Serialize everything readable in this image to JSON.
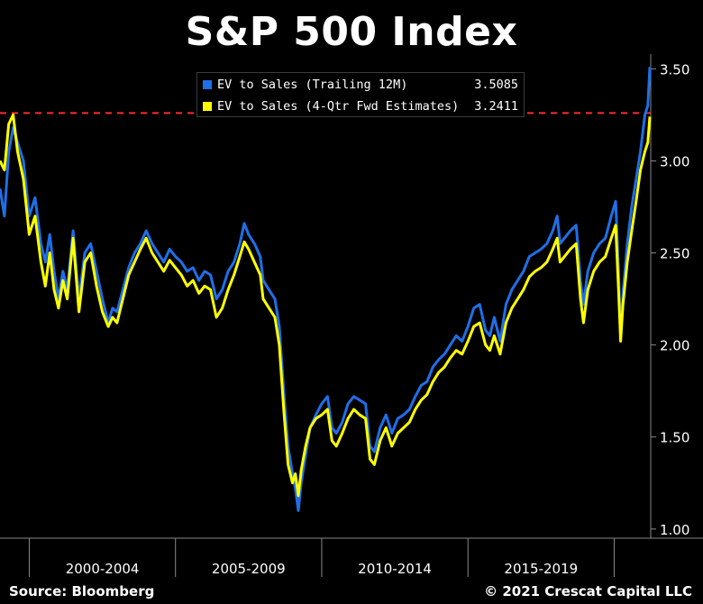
{
  "title": "S&P 500 Index",
  "legend": [
    {
      "label": "EV to Sales (Trailing 12M)",
      "value": "3.5085",
      "color": "#1f6fe8"
    },
    {
      "label": "EV to Sales (4-Qtr Fwd Estimates)",
      "value": "3.2411",
      "color": "#ffff00"
    }
  ],
  "footer": {
    "source": "Source: Bloomberg",
    "copyright": "© 2021 Crescat Capital LLC"
  },
  "colors": {
    "background": "#000000",
    "trailing": "#1f6fe8",
    "forward": "#ffff00",
    "reference_line": "#ff2a2a",
    "axis": "#888888"
  },
  "chart_data": {
    "type": "line",
    "title": "S&P 500 Index",
    "xlabel": "",
    "ylabel": "",
    "x_period_labels": [
      "2000-2004",
      "2005-2009",
      "2010-2014",
      "2015-2019"
    ],
    "xlim": [
      1999.0,
      2021.25
    ],
    "ylim": [
      0.95,
      3.58
    ],
    "y_ticks": [
      1.0,
      1.5,
      2.0,
      2.5,
      3.0,
      3.5
    ],
    "y_tick_labels": [
      "1.00",
      "1.50",
      "2.00",
      "2.50",
      "3.00",
      "3.50"
    ],
    "y_axis_side": "right",
    "reference_line": {
      "y": 3.26,
      "style": "dashed",
      "color": "#ff2a2a"
    },
    "series": [
      {
        "name": "EV to Sales (Trailing 12M)",
        "color": "#1f6fe8",
        "last_value": 3.5085,
        "points": [
          [
            1999.0,
            2.85
          ],
          [
            1999.15,
            2.7
          ],
          [
            1999.3,
            3.05
          ],
          [
            1999.45,
            3.18
          ],
          [
            1999.6,
            3.1
          ],
          [
            1999.8,
            3.0
          ],
          [
            2000.0,
            2.7
          ],
          [
            2000.2,
            2.8
          ],
          [
            2000.4,
            2.55
          ],
          [
            2000.55,
            2.45
          ],
          [
            2000.7,
            2.6
          ],
          [
            2000.85,
            2.4
          ],
          [
            2001.0,
            2.25
          ],
          [
            2001.15,
            2.4
          ],
          [
            2001.3,
            2.3
          ],
          [
            2001.5,
            2.62
          ],
          [
            2001.7,
            2.25
          ],
          [
            2001.9,
            2.5
          ],
          [
            2002.1,
            2.55
          ],
          [
            2002.3,
            2.4
          ],
          [
            2002.5,
            2.25
          ],
          [
            2002.7,
            2.12
          ],
          [
            2002.85,
            2.2
          ],
          [
            2003.0,
            2.18
          ],
          [
            2003.2,
            2.3
          ],
          [
            2003.4,
            2.42
          ],
          [
            2003.6,
            2.5
          ],
          [
            2003.8,
            2.55
          ],
          [
            2004.0,
            2.62
          ],
          [
            2004.2,
            2.55
          ],
          [
            2004.4,
            2.5
          ],
          [
            2004.6,
            2.45
          ],
          [
            2004.8,
            2.52
          ],
          [
            2005.0,
            2.48
          ],
          [
            2005.2,
            2.45
          ],
          [
            2005.4,
            2.4
          ],
          [
            2005.6,
            2.42
          ],
          [
            2005.8,
            2.35
          ],
          [
            2006.0,
            2.4
          ],
          [
            2006.2,
            2.38
          ],
          [
            2006.4,
            2.25
          ],
          [
            2006.6,
            2.3
          ],
          [
            2006.8,
            2.4
          ],
          [
            2007.0,
            2.45
          ],
          [
            2007.2,
            2.55
          ],
          [
            2007.35,
            2.66
          ],
          [
            2007.5,
            2.6
          ],
          [
            2007.7,
            2.55
          ],
          [
            2007.9,
            2.48
          ],
          [
            2008.0,
            2.35
          ],
          [
            2008.2,
            2.3
          ],
          [
            2008.4,
            2.25
          ],
          [
            2008.55,
            2.1
          ],
          [
            2008.7,
            1.75
          ],
          [
            2008.85,
            1.45
          ],
          [
            2009.0,
            1.3
          ],
          [
            2009.1,
            1.22
          ],
          [
            2009.2,
            1.1
          ],
          [
            2009.3,
            1.25
          ],
          [
            2009.45,
            1.4
          ],
          [
            2009.6,
            1.55
          ],
          [
            2009.8,
            1.62
          ],
          [
            2010.0,
            1.68
          ],
          [
            2010.2,
            1.72
          ],
          [
            2010.35,
            1.55
          ],
          [
            2010.5,
            1.52
          ],
          [
            2010.7,
            1.58
          ],
          [
            2010.9,
            1.68
          ],
          [
            2011.1,
            1.72
          ],
          [
            2011.3,
            1.7
          ],
          [
            2011.5,
            1.68
          ],
          [
            2011.65,
            1.45
          ],
          [
            2011.8,
            1.42
          ],
          [
            2012.0,
            1.55
          ],
          [
            2012.2,
            1.62
          ],
          [
            2012.4,
            1.52
          ],
          [
            2012.6,
            1.6
          ],
          [
            2012.8,
            1.62
          ],
          [
            2013.0,
            1.65
          ],
          [
            2013.2,
            1.72
          ],
          [
            2013.4,
            1.78
          ],
          [
            2013.6,
            1.8
          ],
          [
            2013.8,
            1.88
          ],
          [
            2014.0,
            1.92
          ],
          [
            2014.2,
            1.95
          ],
          [
            2014.4,
            2.0
          ],
          [
            2014.6,
            2.05
          ],
          [
            2014.8,
            2.02
          ],
          [
            2015.0,
            2.1
          ],
          [
            2015.2,
            2.2
          ],
          [
            2015.4,
            2.22
          ],
          [
            2015.6,
            2.08
          ],
          [
            2015.75,
            2.05
          ],
          [
            2015.9,
            2.15
          ],
          [
            2016.1,
            2.02
          ],
          [
            2016.3,
            2.22
          ],
          [
            2016.5,
            2.3
          ],
          [
            2016.7,
            2.35
          ],
          [
            2016.9,
            2.4
          ],
          [
            2017.1,
            2.48
          ],
          [
            2017.3,
            2.5
          ],
          [
            2017.5,
            2.52
          ],
          [
            2017.7,
            2.55
          ],
          [
            2017.9,
            2.62
          ],
          [
            2018.05,
            2.7
          ],
          [
            2018.15,
            2.55
          ],
          [
            2018.3,
            2.58
          ],
          [
            2018.5,
            2.62
          ],
          [
            2018.7,
            2.65
          ],
          [
            2018.85,
            2.35
          ],
          [
            2018.95,
            2.22
          ],
          [
            2019.1,
            2.4
          ],
          [
            2019.3,
            2.5
          ],
          [
            2019.5,
            2.55
          ],
          [
            2019.7,
            2.58
          ],
          [
            2019.9,
            2.7
          ],
          [
            2020.05,
            2.78
          ],
          [
            2020.15,
            2.4
          ],
          [
            2020.22,
            2.05
          ],
          [
            2020.3,
            2.28
          ],
          [
            2020.45,
            2.55
          ],
          [
            2020.6,
            2.75
          ],
          [
            2020.75,
            2.9
          ],
          [
            2020.9,
            3.05
          ],
          [
            2021.05,
            3.25
          ],
          [
            2021.15,
            3.3
          ],
          [
            2021.22,
            3.51
          ]
        ]
      },
      {
        "name": "EV to Sales (4-Qtr Fwd Estimates)",
        "color": "#ffff00",
        "last_value": 3.2411,
        "points": [
          [
            1999.0,
            3.0
          ],
          [
            1999.15,
            2.95
          ],
          [
            1999.3,
            3.2
          ],
          [
            1999.45,
            3.25
          ],
          [
            1999.6,
            3.05
          ],
          [
            1999.8,
            2.9
          ],
          [
            2000.0,
            2.6
          ],
          [
            2000.2,
            2.7
          ],
          [
            2000.4,
            2.45
          ],
          [
            2000.55,
            2.32
          ],
          [
            2000.7,
            2.5
          ],
          [
            2000.85,
            2.3
          ],
          [
            2001.0,
            2.2
          ],
          [
            2001.15,
            2.35
          ],
          [
            2001.3,
            2.25
          ],
          [
            2001.5,
            2.58
          ],
          [
            2001.7,
            2.18
          ],
          [
            2001.9,
            2.45
          ],
          [
            2002.1,
            2.5
          ],
          [
            2002.3,
            2.32
          ],
          [
            2002.5,
            2.18
          ],
          [
            2002.7,
            2.1
          ],
          [
            2002.85,
            2.15
          ],
          [
            2003.0,
            2.12
          ],
          [
            2003.2,
            2.25
          ],
          [
            2003.4,
            2.38
          ],
          [
            2003.6,
            2.45
          ],
          [
            2003.8,
            2.52
          ],
          [
            2004.0,
            2.58
          ],
          [
            2004.2,
            2.5
          ],
          [
            2004.4,
            2.45
          ],
          [
            2004.6,
            2.4
          ],
          [
            2004.8,
            2.46
          ],
          [
            2005.0,
            2.42
          ],
          [
            2005.2,
            2.38
          ],
          [
            2005.4,
            2.32
          ],
          [
            2005.6,
            2.35
          ],
          [
            2005.8,
            2.28
          ],
          [
            2006.0,
            2.32
          ],
          [
            2006.2,
            2.3
          ],
          [
            2006.4,
            2.15
          ],
          [
            2006.6,
            2.2
          ],
          [
            2006.8,
            2.3
          ],
          [
            2007.0,
            2.38
          ],
          [
            2007.2,
            2.48
          ],
          [
            2007.35,
            2.56
          ],
          [
            2007.5,
            2.52
          ],
          [
            2007.7,
            2.45
          ],
          [
            2007.9,
            2.38
          ],
          [
            2008.0,
            2.25
          ],
          [
            2008.2,
            2.2
          ],
          [
            2008.4,
            2.15
          ],
          [
            2008.55,
            2.0
          ],
          [
            2008.7,
            1.65
          ],
          [
            2008.85,
            1.35
          ],
          [
            2009.0,
            1.25
          ],
          [
            2009.1,
            1.3
          ],
          [
            2009.2,
            1.18
          ],
          [
            2009.3,
            1.32
          ],
          [
            2009.45,
            1.45
          ],
          [
            2009.6,
            1.55
          ],
          [
            2009.8,
            1.6
          ],
          [
            2010.0,
            1.62
          ],
          [
            2010.2,
            1.65
          ],
          [
            2010.35,
            1.48
          ],
          [
            2010.5,
            1.45
          ],
          [
            2010.7,
            1.52
          ],
          [
            2010.9,
            1.6
          ],
          [
            2011.1,
            1.65
          ],
          [
            2011.3,
            1.62
          ],
          [
            2011.5,
            1.6
          ],
          [
            2011.65,
            1.38
          ],
          [
            2011.8,
            1.35
          ],
          [
            2012.0,
            1.48
          ],
          [
            2012.2,
            1.55
          ],
          [
            2012.4,
            1.45
          ],
          [
            2012.6,
            1.52
          ],
          [
            2012.8,
            1.55
          ],
          [
            2013.0,
            1.58
          ],
          [
            2013.2,
            1.65
          ],
          [
            2013.4,
            1.7
          ],
          [
            2013.6,
            1.73
          ],
          [
            2013.8,
            1.8
          ],
          [
            2014.0,
            1.85
          ],
          [
            2014.2,
            1.88
          ],
          [
            2014.4,
            1.93
          ],
          [
            2014.6,
            1.97
          ],
          [
            2014.8,
            1.95
          ],
          [
            2015.0,
            2.02
          ],
          [
            2015.2,
            2.1
          ],
          [
            2015.4,
            2.12
          ],
          [
            2015.6,
            2.0
          ],
          [
            2015.75,
            1.97
          ],
          [
            2015.9,
            2.05
          ],
          [
            2016.1,
            1.95
          ],
          [
            2016.3,
            2.12
          ],
          [
            2016.5,
            2.2
          ],
          [
            2016.7,
            2.25
          ],
          [
            2016.9,
            2.3
          ],
          [
            2017.1,
            2.37
          ],
          [
            2017.3,
            2.4
          ],
          [
            2017.5,
            2.42
          ],
          [
            2017.7,
            2.45
          ],
          [
            2017.9,
            2.52
          ],
          [
            2018.05,
            2.58
          ],
          [
            2018.15,
            2.45
          ],
          [
            2018.3,
            2.48
          ],
          [
            2018.5,
            2.52
          ],
          [
            2018.7,
            2.55
          ],
          [
            2018.85,
            2.25
          ],
          [
            2018.95,
            2.12
          ],
          [
            2019.1,
            2.3
          ],
          [
            2019.3,
            2.4
          ],
          [
            2019.5,
            2.45
          ],
          [
            2019.7,
            2.48
          ],
          [
            2019.9,
            2.58
          ],
          [
            2020.05,
            2.65
          ],
          [
            2020.15,
            2.3
          ],
          [
            2020.22,
            2.02
          ],
          [
            2020.3,
            2.22
          ],
          [
            2020.45,
            2.45
          ],
          [
            2020.6,
            2.62
          ],
          [
            2020.75,
            2.78
          ],
          [
            2020.9,
            2.95
          ],
          [
            2021.05,
            3.05
          ],
          [
            2021.15,
            3.1
          ],
          [
            2021.22,
            3.24
          ]
        ]
      }
    ]
  }
}
